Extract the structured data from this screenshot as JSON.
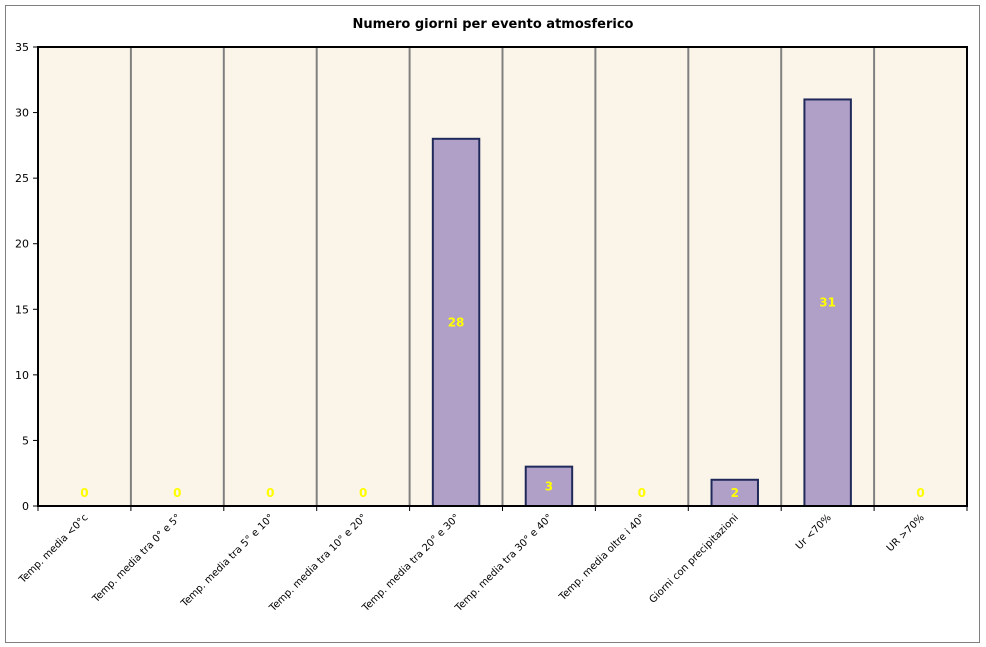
{
  "chart_data": {
    "type": "bar",
    "title": "Numero giorni per evento atmosferico",
    "xlabel": "",
    "ylabel": "",
    "categories": [
      "Temp. media <0°c",
      "Temp. media tra 0° e 5°",
      "Temp. media tra 5° e 10°",
      "Temp. media tra 10° e 20°",
      "Temp. media tra 20° e 30°",
      "Temp. media tra 30° e 40°",
      "Temp. media oltre i 40°",
      "Giorni con precipitazioni",
      "Ur <70%",
      "UR >70%"
    ],
    "values": [
      0,
      0,
      0,
      0,
      28,
      3,
      0,
      2,
      31,
      0
    ],
    "ylim": [
      0,
      35
    ],
    "yticks": [
      0,
      5,
      10,
      15,
      20,
      25,
      30,
      35
    ],
    "grid": "vertical",
    "legend": "none",
    "colors": {
      "bar_fill": "#b0a0c8",
      "bar_stroke": "#1f2a5a",
      "plot_bg": "#fbf5e9",
      "grid": "#808080",
      "data_label": "#ffff00"
    }
  }
}
